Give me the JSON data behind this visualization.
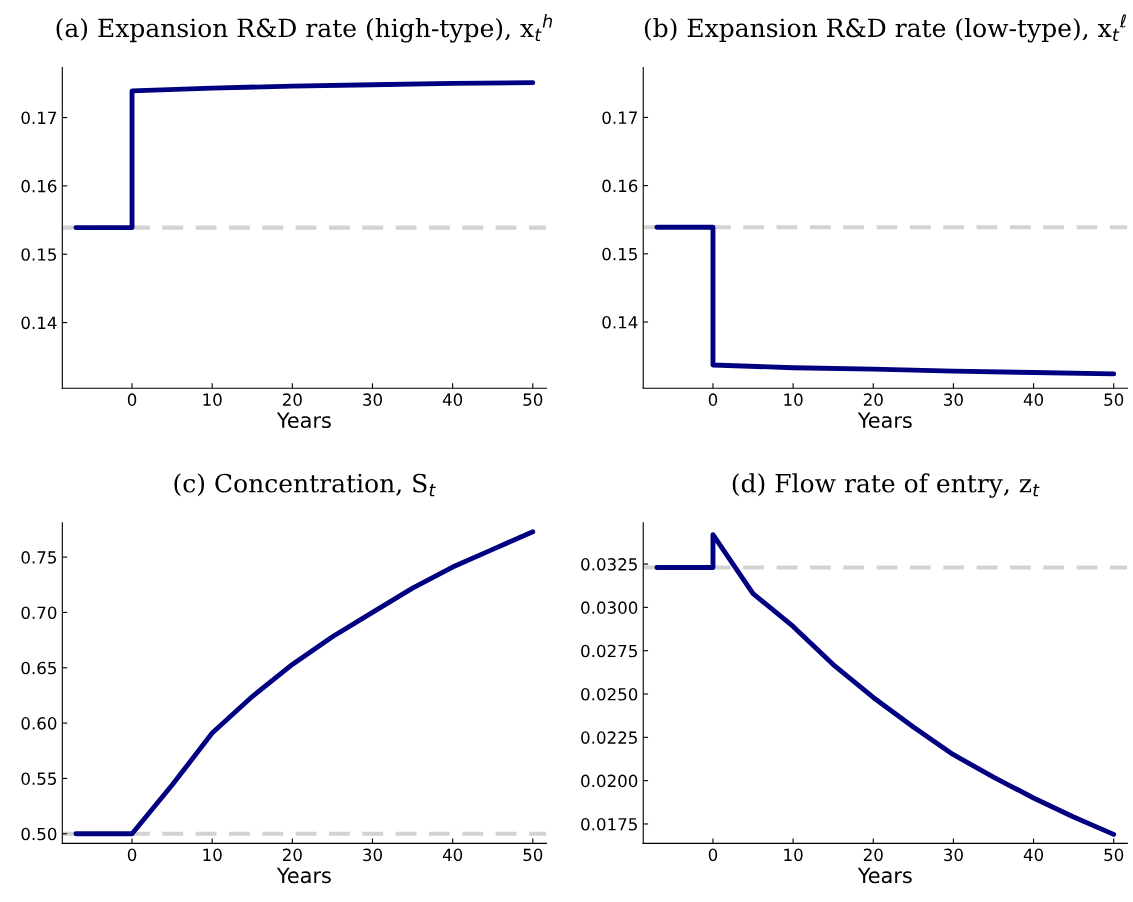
{
  "chart_data": [
    {
      "type": "line",
      "title": "(a) Expansion R&D rate (high-type), x$_{t}$$^{h}$",
      "xlabel": "Years",
      "xlim": [
        -8.7,
        51.7
      ],
      "xticks": [
        0,
        10,
        20,
        30,
        40,
        50
      ],
      "ylim": [
        0.1304,
        0.1773
      ],
      "yticks": [
        0.14,
        0.15,
        0.16,
        0.17
      ],
      "grid": false,
      "legend": false,
      "series": [
        {
          "color": "#000080",
          "x": [
            -7,
            0,
            0,
            10,
            20,
            30,
            40,
            50
          ],
          "values": [
            0.1539,
            0.1539,
            0.1739,
            0.1743,
            0.1746,
            0.1748,
            0.175,
            0.1751
          ]
        }
      ],
      "ref_lines": [
        {
          "axis": "y",
          "value": 0.1539,
          "color": "#d3d3d3",
          "line_style": "dashed"
        }
      ]
    },
    {
      "type": "line",
      "title": "(b) Expansion R&D rate (low-type), x$_{t}$$^{ℓ}$",
      "xlabel": "Years",
      "xlim": [
        -8.7,
        51.7
      ],
      "xticks": [
        0,
        10,
        20,
        30,
        40,
        50
      ],
      "ylim": [
        0.1303,
        0.1773
      ],
      "yticks": [
        0.14,
        0.15,
        0.16,
        0.17
      ],
      "grid": false,
      "legend": false,
      "series": [
        {
          "color": "#000080",
          "x": [
            -7,
            0,
            0,
            10,
            20,
            30,
            40,
            50
          ],
          "values": [
            0.1539,
            0.1539,
            0.1337,
            0.1333,
            0.1331,
            0.1328,
            0.1326,
            0.1324
          ]
        }
      ],
      "ref_lines": [
        {
          "axis": "y",
          "value": 0.1539,
          "color": "#d3d3d3",
          "line_style": "dashed"
        }
      ]
    },
    {
      "type": "line",
      "title": "(c) Concentration, S$_{t}$",
      "xlabel": "Years",
      "xlim": [
        -8.7,
        51.7
      ],
      "xticks": [
        0,
        10,
        20,
        30,
        40,
        50
      ],
      "ylim": [
        0.4913,
        0.781
      ],
      "yticks": [
        {
          "value": 0.5,
          "label": "0.50"
        },
        {
          "value": 0.55,
          "label": "0.55"
        },
        {
          "value": 0.6,
          "label": "0.60"
        },
        {
          "value": 0.65,
          "label": "0.65"
        },
        {
          "value": 0.7,
          "label": "0.70"
        },
        {
          "value": 0.75,
          "label": "0.75"
        }
      ],
      "grid": false,
      "legend": false,
      "series": [
        {
          "color": "#000080",
          "x": [
            -7,
            0,
            5,
            10,
            15,
            20,
            25,
            30,
            35,
            40,
            45,
            50
          ],
          "values": [
            0.5,
            0.5,
            0.544,
            0.591,
            0.624,
            0.653,
            0.678,
            0.7,
            0.722,
            0.741,
            0.757,
            0.773
          ]
        }
      ],
      "ref_lines": [
        {
          "axis": "y",
          "value": 0.5,
          "color": "#d3d3d3",
          "line_style": "dashed"
        }
      ]
    },
    {
      "type": "line",
      "title": "(d) Flow rate of entry, z$_{t}$",
      "xlabel": "Years",
      "xlim": [
        -8.7,
        51.7
      ],
      "xticks": [
        0,
        10,
        20,
        30,
        40,
        50
      ],
      "ylim": [
        0.01638,
        0.03488
      ],
      "yticks": [
        {
          "value": 0.0175,
          "label": "0.0175"
        },
        {
          "value": 0.02,
          "label": "0.0200"
        },
        {
          "value": 0.0225,
          "label": "0.0225"
        },
        {
          "value": 0.025,
          "label": "0.0250"
        },
        {
          "value": 0.0275,
          "label": "0.0275"
        },
        {
          "value": 0.03,
          "label": "0.0300"
        },
        {
          "value": 0.0325,
          "label": "0.0325"
        }
      ],
      "grid": false,
      "legend": false,
      "series": [
        {
          "color": "#000080",
          "x": [
            -7,
            0,
            0,
            5,
            10,
            15,
            20,
            25,
            30,
            35,
            40,
            45,
            50
          ],
          "values": [
            0.0323,
            0.0323,
            0.0342,
            0.0308,
            0.0289,
            0.0267,
            0.0248,
            0.0231,
            0.0215,
            0.0202,
            0.019,
            0.0179,
            0.0169
          ]
        }
      ],
      "ref_lines": [
        {
          "axis": "y",
          "value": 0.0323,
          "color": "#d3d3d3",
          "line_style": "dashed"
        }
      ]
    }
  ]
}
